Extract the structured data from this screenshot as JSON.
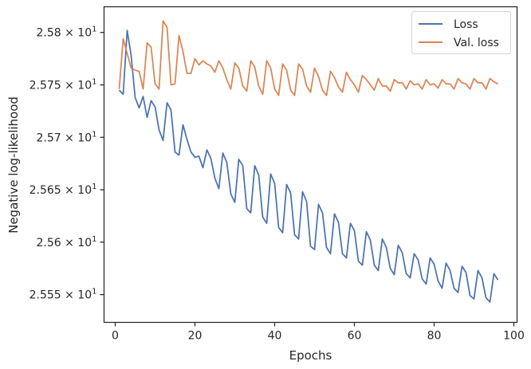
{
  "chart_data": {
    "type": "line",
    "xlabel": "Epochs",
    "ylabel": "Negative log-likelihood",
    "xlim": [
      -2.8,
      100.8
    ],
    "ylim": [
      25.5235,
      25.8245
    ],
    "x_ticks": [
      0,
      20,
      40,
      60,
      80,
      100
    ],
    "y_ticks": [
      {
        "value": 25.55,
        "mantissa": "2.555",
        "base": "10",
        "exponent": "1"
      },
      {
        "value": 25.6,
        "mantissa": "2.56",
        "base": "10",
        "exponent": "1"
      },
      {
        "value": 25.65,
        "mantissa": "2.565",
        "base": "10",
        "exponent": "1"
      },
      {
        "value": 25.7,
        "mantissa": "2.57",
        "base": "10",
        "exponent": "1"
      },
      {
        "value": 25.75,
        "mantissa": "2.575",
        "base": "10",
        "exponent": "1"
      },
      {
        "value": 25.8,
        "mantissa": "2.58",
        "base": "10",
        "exponent": "1"
      }
    ],
    "grid": false,
    "legend_position": "top-right",
    "x": [
      1,
      2,
      3,
      4,
      5,
      6,
      7,
      8,
      9,
      10,
      11,
      12,
      13,
      14,
      15,
      16,
      17,
      18,
      19,
      20,
      21,
      22,
      23,
      24,
      25,
      26,
      27,
      28,
      29,
      30,
      31,
      32,
      33,
      34,
      35,
      36,
      37,
      38,
      39,
      40,
      41,
      42,
      43,
      44,
      45,
      46,
      47,
      48,
      49,
      50,
      51,
      52,
      53,
      54,
      55,
      56,
      57,
      58,
      59,
      60,
      61,
      62,
      63,
      64,
      65,
      66,
      67,
      68,
      69,
      70,
      71,
      72,
      73,
      74,
      75,
      76,
      77,
      78,
      79,
      80,
      81,
      82,
      83,
      84,
      85,
      86,
      87,
      88,
      89,
      90,
      91,
      92,
      93,
      94,
      95,
      96
    ],
    "series": [
      {
        "name": "Loss",
        "color": "#4c72b0",
        "values": [
          25.745,
          25.741,
          25.802,
          25.778,
          25.738,
          25.728,
          25.739,
          25.719,
          25.735,
          25.729,
          25.707,
          25.697,
          25.733,
          25.726,
          25.686,
          25.683,
          25.712,
          25.698,
          25.686,
          25.681,
          25.682,
          25.671,
          25.688,
          25.68,
          25.661,
          25.651,
          25.685,
          25.676,
          25.646,
          25.638,
          25.679,
          25.673,
          25.632,
          25.628,
          25.673,
          25.664,
          25.624,
          25.618,
          25.665,
          25.656,
          25.614,
          25.609,
          25.655,
          25.647,
          25.607,
          25.603,
          25.648,
          25.639,
          25.596,
          25.593,
          25.636,
          25.628,
          25.595,
          25.589,
          25.627,
          25.619,
          25.589,
          25.585,
          25.618,
          25.611,
          25.582,
          25.578,
          25.61,
          25.602,
          25.578,
          25.573,
          25.603,
          25.595,
          25.575,
          25.569,
          25.597,
          25.59,
          25.57,
          25.566,
          25.589,
          25.583,
          25.565,
          25.56,
          25.585,
          25.579,
          25.563,
          25.556,
          25.58,
          25.573,
          25.556,
          25.552,
          25.577,
          25.571,
          25.549,
          25.546,
          25.573,
          25.566,
          25.547,
          25.543,
          25.57,
          25.564
        ]
      },
      {
        "name": "Val. loss",
        "color": "#dd8452",
        "values": [
          25.746,
          25.794,
          25.78,
          25.766,
          25.764,
          25.763,
          25.746,
          25.79,
          25.786,
          25.751,
          25.746,
          25.811,
          25.805,
          25.75,
          25.751,
          25.797,
          25.782,
          25.761,
          25.761,
          25.775,
          25.769,
          25.773,
          25.77,
          25.768,
          25.762,
          25.773,
          25.766,
          25.755,
          25.746,
          25.771,
          25.766,
          25.749,
          25.744,
          25.773,
          25.767,
          25.749,
          25.741,
          25.773,
          25.766,
          25.746,
          25.74,
          25.77,
          25.764,
          25.745,
          25.74,
          25.77,
          25.765,
          25.749,
          25.743,
          25.766,
          25.758,
          25.745,
          25.74,
          25.763,
          25.757,
          25.748,
          25.743,
          25.762,
          25.755,
          25.75,
          25.743,
          25.759,
          25.755,
          25.75,
          25.745,
          25.756,
          25.749,
          25.749,
          25.744,
          25.755,
          25.752,
          25.752,
          25.746,
          25.754,
          25.75,
          25.751,
          25.746,
          25.755,
          25.75,
          25.751,
          25.747,
          25.755,
          25.751,
          25.751,
          25.746,
          25.756,
          25.752,
          25.751,
          25.746,
          25.756,
          25.752,
          25.752,
          25.746,
          25.756,
          25.753,
          25.751
        ]
      }
    ]
  }
}
